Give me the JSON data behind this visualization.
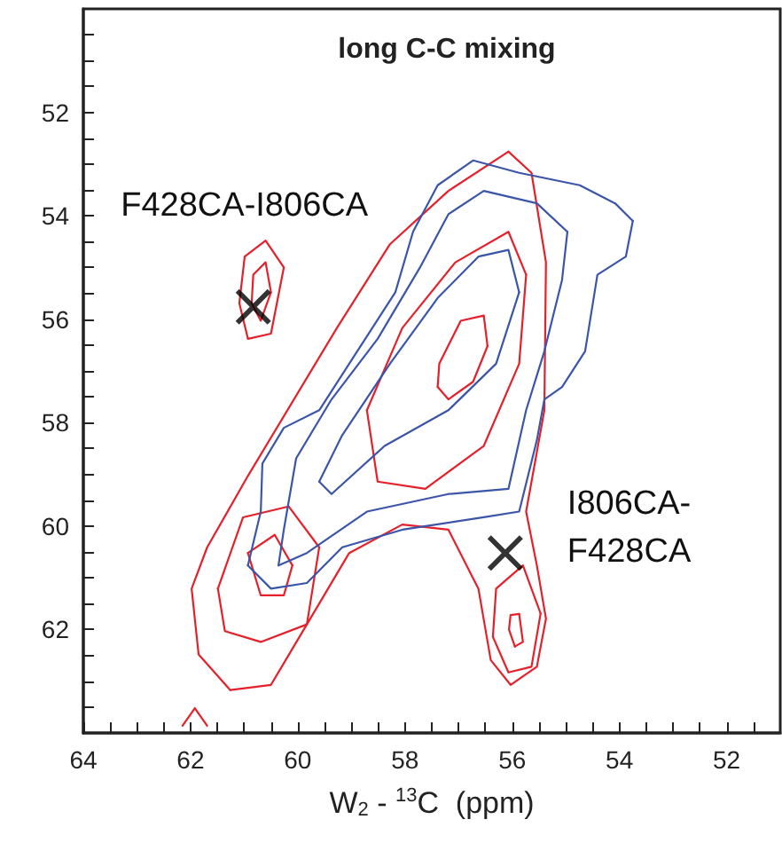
{
  "chart_data": {
    "type": "line",
    "title": "long C-C mixing",
    "xlabel": "W$_{2}$ - $^{13}$C  (ppm)",
    "xlim": [
      64,
      51
    ],
    "ylim": [
      64,
      50
    ],
    "xticks": [
      64,
      {
        "value": 63.5,
        "label": null
      },
      {
        "value": 63,
        "label": null
      },
      {
        "value": 62.5,
        "label": null
      },
      62,
      {
        "value": 61.5,
        "label": null
      },
      {
        "value": 61,
        "label": null
      },
      {
        "value": 60.5,
        "label": null
      },
      60,
      {
        "value": 59.5,
        "label": null
      },
      {
        "value": 59,
        "label": null
      },
      {
        "value": 58.5,
        "label": null
      },
      58,
      {
        "value": 57.5,
        "label": null
      },
      {
        "value": 57,
        "label": null
      },
      {
        "value": 56.5,
        "label": null
      },
      56,
      {
        "value": 55.5,
        "label": null
      },
      {
        "value": 55,
        "label": null
      },
      {
        "value": 54.5,
        "label": null
      },
      54,
      {
        "value": 53.5,
        "label": null
      },
      {
        "value": 53,
        "label": null
      },
      {
        "value": 52.5,
        "label": null
      },
      52,
      {
        "value": 51.5,
        "label": null
      }
    ],
    "yticks": [
      {
        "value": 50.5,
        "label": null
      },
      {
        "value": 51,
        "label": null
      },
      {
        "value": 51.5,
        "label": null
      },
      52,
      {
        "value": 52.5,
        "label": null
      },
      {
        "value": 53,
        "label": null
      },
      {
        "value": 53.5,
        "label": null
      },
      54,
      {
        "value": 54.5,
        "label": null
      },
      {
        "value": 55,
        "label": null
      },
      {
        "value": 55.5,
        "label": null
      },
      56,
      {
        "value": 56.5,
        "label": null
      },
      {
        "value": 57,
        "label": null
      },
      {
        "value": 57.5,
        "label": null
      },
      58,
      {
        "value": 58.5,
        "label": null
      },
      {
        "value": 59,
        "label": null
      },
      {
        "value": 59.5,
        "label": null
      },
      60,
      {
        "value": 60.5,
        "label": null
      },
      {
        "value": 61,
        "label": null
      },
      {
        "value": 61.5,
        "label": null
      },
      62,
      {
        "value": 62.5,
        "label": null
      },
      {
        "value": 63,
        "label": null
      },
      {
        "value": 63.5,
        "label": null
      }
    ],
    "grid": false,
    "marker": "none",
    "line_style": "solid",
    "series": [
      {
        "color": "#e5202a",
        "x": [
          56.07,
          57.19,
          58.28,
          59.27,
          60.93,
          61.69,
          61.98,
          61.85,
          61.26
        ],
        "values": [
          52.76,
          53.52,
          54.55,
          56.17,
          59.03,
          60.41,
          61.21,
          62.48,
          63.17
        ]
      },
      {
        "color": "#e5202a",
        "x": [
          56.07,
          55.64,
          55.37,
          55.4,
          55.74,
          55.54,
          55.37,
          55.54,
          56.03,
          56.4,
          56.63,
          57.19,
          58.05,
          59.04,
          59.83,
          60.5,
          61.26
        ],
        "values": [
          52.76,
          53.17,
          54.9,
          57.76,
          59.72,
          60.76,
          61.79,
          62.72,
          63.07,
          62.59,
          61.21,
          60.07,
          59.97,
          60.52,
          61.9,
          63.07,
          63.17
        ]
      },
      {
        "color": "#e5202a",
        "x": [
          55.74,
          56.07,
          57.06,
          58.05,
          58.71
        ],
        "values": [
          55.14,
          54.31,
          54.9,
          56.17,
          57.76
        ]
      },
      {
        "color": "#e5202a",
        "x": [
          55.74,
          55.87,
          56.53,
          57.62,
          58.51,
          58.71
        ],
        "values": [
          55.14,
          56.86,
          58.45,
          59.28,
          59.14,
          57.76
        ]
      },
      {
        "color": "#e5202a",
        "x": [
          56.46,
          56.53,
          56.96,
          57.36,
          57.39
        ],
        "values": [
          56.52,
          55.93,
          56.03,
          56.86,
          57.31
        ]
      },
      {
        "color": "#e5202a",
        "x": [
          56.46,
          56.73,
          57.19,
          57.39
        ],
        "values": [
          56.52,
          57.21,
          57.55,
          57.31
        ]
      },
      {
        "color": "#e5202a",
        "x": [
          59.6,
          60.17,
          61.02,
          61.49
        ],
        "values": [
          60.41,
          59.62,
          59.83,
          61.21
        ]
      },
      {
        "color": "#e5202a",
        "x": [
          59.6,
          59.83,
          60.69,
          61.36,
          61.49
        ],
        "values": [
          60.41,
          61.9,
          62.24,
          62.03,
          61.21
        ]
      },
      {
        "color": "#e5202a",
        "x": [
          60.1,
          60.43,
          60.93
        ],
        "values": [
          60.76,
          60.17,
          60.52
        ]
      },
      {
        "color": "#e5202a",
        "x": [
          60.1,
          60.26,
          60.69,
          60.93
        ],
        "values": [
          60.76,
          61.34,
          61.34,
          60.52
        ]
      },
      {
        "color": "#e5202a",
        "x": [
          55.47,
          55.8,
          56.3,
          56.36
        ],
        "values": [
          61.69,
          60.76,
          61.21,
          62.14
        ]
      },
      {
        "color": "#e5202a",
        "x": [
          55.47,
          55.64,
          56.07,
          56.36
        ],
        "values": [
          61.69,
          62.72,
          62.83,
          62.14
        ]
      },
      {
        "color": "#e5202a",
        "x": [
          55.87,
          55.8,
          55.95
        ],
        "values": [
          61.7,
          62.24,
          62.33
        ]
      },
      {
        "color": "#e5202a",
        "x": [
          55.87,
          56.03,
          56.06,
          55.95
        ],
        "values": [
          61.7,
          61.72,
          62.0,
          62.33
        ]
      },
      {
        "color": "#e5202a",
        "x": [
          60.26,
          60.6,
          60.99,
          61.09
        ],
        "values": [
          55.0,
          54.48,
          54.79,
          55.69
        ]
      },
      {
        "color": "#e5202a",
        "x": [
          60.26,
          60.5,
          60.93,
          61.09
        ],
        "values": [
          55.0,
          56.28,
          56.38,
          55.69
        ]
      },
      {
        "color": "#e5202a",
        "x": [
          60.5,
          60.6,
          60.83,
          60.86
        ],
        "values": [
          55.48,
          54.9,
          55.14,
          55.69
        ]
      },
      {
        "color": "#e5202a",
        "x": [
          60.5,
          60.69,
          60.86
        ],
        "values": [
          55.48,
          56.03,
          55.69
        ]
      },
      {
        "color": "#e5202a",
        "x": [
          61.69,
          61.92,
          62.15
        ],
        "values": [
          63.86,
          63.52,
          63.86
        ]
      },
      {
        "color": "#3b55a8",
        "x": [
          53.75,
          53.88,
          54.41,
          54.64,
          55.07,
          55.4,
          55.54,
          55.87,
          56.53,
          58.05,
          59.17,
          59.83,
          60.5,
          60.93
        ],
        "values": [
          54.1,
          54.79,
          55.14,
          56.62,
          57.31,
          57.55,
          58.34,
          59.72,
          59.83,
          60.07,
          60.41,
          61.1,
          61.21,
          60.76
        ]
      },
      {
        "color": "#3b55a8",
        "x": [
          53.75,
          54.08,
          54.74,
          55.87,
          56.73,
          57.39,
          57.85,
          58.18,
          59.04,
          59.6,
          60.26,
          60.66,
          60.69,
          60.93
        ],
        "values": [
          54.1,
          53.76,
          53.41,
          53.17,
          52.93,
          53.41,
          54.31,
          55.48,
          56.86,
          57.76,
          58.1,
          58.79,
          59.72,
          60.76
        ]
      },
      {
        "color": "#3b55a8",
        "x": [
          54.97,
          55.07,
          55.4,
          55.74,
          56.07,
          57.19,
          58.71,
          59.83,
          60.36
        ],
        "values": [
          54.31,
          55.24,
          56.62,
          57.76,
          59.28,
          59.38,
          59.72,
          60.52,
          60.76
        ]
      },
      {
        "color": "#3b55a8",
        "x": [
          54.97,
          55.54,
          56.53,
          57.19,
          57.72,
          58.51,
          59.37,
          60.03,
          60.26,
          60.36
        ],
        "values": [
          54.31,
          53.76,
          53.52,
          53.97,
          55.0,
          56.38,
          57.55,
          58.69,
          60.07,
          60.76
        ]
      },
      {
        "color": "#3b55a8",
        "x": [
          55.87,
          56.3,
          57.19,
          58.38,
          59.37,
          59.6
        ],
        "values": [
          55.48,
          56.86,
          57.76,
          58.45,
          59.38,
          59.14
        ]
      },
      {
        "color": "#3b55a8",
        "x": [
          55.87,
          56.07,
          56.63,
          57.39,
          58.28,
          59.17,
          59.6
        ],
        "values": [
          55.48,
          54.66,
          54.79,
          55.59,
          56.86,
          58.24,
          59.14
        ]
      },
      {
        "type": "scatter",
        "marker": "cross",
        "color": "#000000",
        "x": [
          60.83,
          56.13
        ],
        "values": [
          55.76,
          60.52
        ]
      }
    ],
    "annotations": [
      {
        "text": "F428CA-I806CA",
        "x": 60.83,
        "y": 55.76
      },
      {
        "text": "I806CA-\nF428CA",
        "x": 56.13,
        "y": 60.52
      }
    ]
  }
}
